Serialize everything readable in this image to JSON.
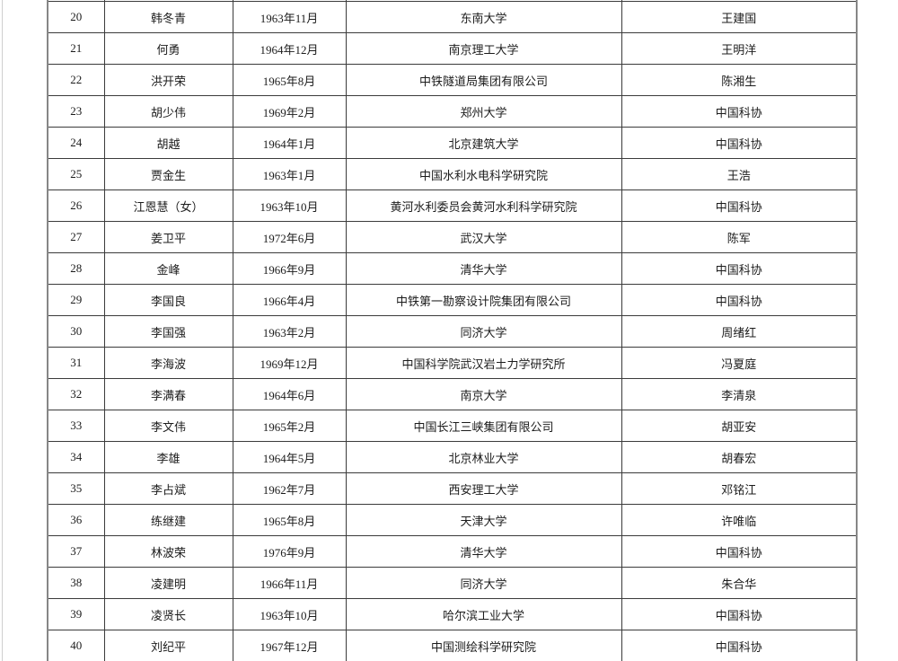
{
  "table": {
    "fields": [
      "number",
      "name",
      "birth_date",
      "organization",
      "nominator"
    ],
    "rows": [
      {
        "number": "20",
        "name": "韩冬青",
        "birth_date": "1963年11月",
        "organization": "东南大学",
        "nominator": "王建国"
      },
      {
        "number": "21",
        "name": "何勇",
        "birth_date": "1964年12月",
        "organization": "南京理工大学",
        "nominator": "王明洋"
      },
      {
        "number": "22",
        "name": "洪开荣",
        "birth_date": "1965年8月",
        "organization": "中铁隧道局集团有限公司",
        "nominator": "陈湘生"
      },
      {
        "number": "23",
        "name": "胡少伟",
        "birth_date": "1969年2月",
        "organization": "郑州大学",
        "nominator": "中国科协"
      },
      {
        "number": "24",
        "name": "胡越",
        "birth_date": "1964年1月",
        "organization": "北京建筑大学",
        "nominator": "中国科协"
      },
      {
        "number": "25",
        "name": "贾金生",
        "birth_date": "1963年1月",
        "organization": "中国水利水电科学研究院",
        "nominator": "王浩"
      },
      {
        "number": "26",
        "name": "江恩慧（女）",
        "birth_date": "1963年10月",
        "organization": "黄河水利委员会黄河水利科学研究院",
        "nominator": "中国科协"
      },
      {
        "number": "27",
        "name": "姜卫平",
        "birth_date": "1972年6月",
        "organization": "武汉大学",
        "nominator": "陈军"
      },
      {
        "number": "28",
        "name": "金峰",
        "birth_date": "1966年9月",
        "organization": "清华大学",
        "nominator": "中国科协"
      },
      {
        "number": "29",
        "name": "李国良",
        "birth_date": "1966年4月",
        "organization": "中铁第一勘察设计院集团有限公司",
        "nominator": "中国科协"
      },
      {
        "number": "30",
        "name": "李国强",
        "birth_date": "1963年2月",
        "organization": "同济大学",
        "nominator": "周绪红"
      },
      {
        "number": "31",
        "name": "李海波",
        "birth_date": "1969年12月",
        "organization": "中国科学院武汉岩土力学研究所",
        "nominator": "冯夏庭"
      },
      {
        "number": "32",
        "name": "李满春",
        "birth_date": "1964年6月",
        "organization": "南京大学",
        "nominator": "李清泉"
      },
      {
        "number": "33",
        "name": "李文伟",
        "birth_date": "1965年2月",
        "organization": "中国长江三峡集团有限公司",
        "nominator": "胡亚安"
      },
      {
        "number": "34",
        "name": "李雄",
        "birth_date": "1964年5月",
        "organization": "北京林业大学",
        "nominator": "胡春宏"
      },
      {
        "number": "35",
        "name": "李占斌",
        "birth_date": "1962年7月",
        "organization": "西安理工大学",
        "nominator": "邓铭江"
      },
      {
        "number": "36",
        "name": "练继建",
        "birth_date": "1965年8月",
        "organization": "天津大学",
        "nominator": "许唯临"
      },
      {
        "number": "37",
        "name": "林波荣",
        "birth_date": "1976年9月",
        "organization": "清华大学",
        "nominator": "中国科协"
      },
      {
        "number": "38",
        "name": "凌建明",
        "birth_date": "1966年11月",
        "organization": "同济大学",
        "nominator": "朱合华"
      },
      {
        "number": "39",
        "name": "凌贤长",
        "birth_date": "1963年10月",
        "organization": "哈尔滨工业大学",
        "nominator": "中国科协"
      },
      {
        "number": "40",
        "name": "刘纪平",
        "birth_date": "1967年12月",
        "organization": "中国测绘科学研究院",
        "nominator": "中国科协"
      }
    ]
  },
  "colors": {
    "grid_line": "#3b3b3b",
    "outer_border": "#868686",
    "page_edge": "#cfcfcf",
    "text": "#1c1c1c",
    "background": "#ffffff"
  }
}
